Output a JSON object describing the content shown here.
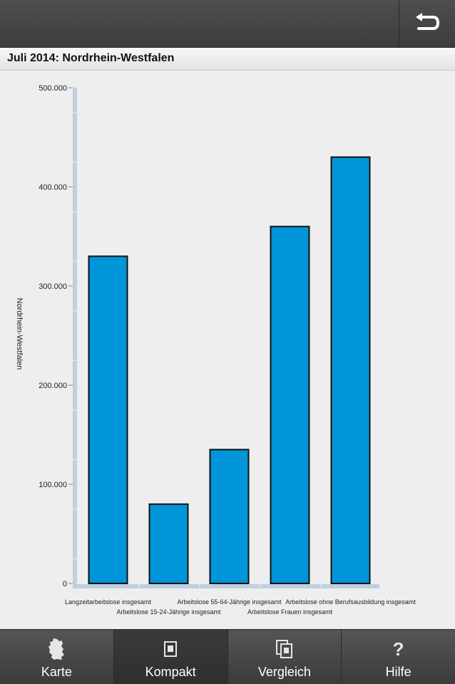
{
  "header": {
    "title": "Juli 2014: Nordrhein-Westfalen"
  },
  "chart_data": {
    "type": "bar",
    "title": "",
    "xlabel": "",
    "ylabel": "Nordrhein-Westfalen",
    "ylim": [
      0,
      500000
    ],
    "yticks": [
      0,
      100000,
      200000,
      300000,
      400000,
      500000
    ],
    "ytick_labels": [
      "0",
      "100.000",
      "200.000",
      "300.000",
      "400.000",
      "500.000"
    ],
    "categories": [
      "Langzeitarbeitslose insgesamt",
      "Arbeitslose 15-24-Jährige insgesamt",
      "Arbeitslose 55-64-Jährige insgesamt",
      "Arbeitslose Frauen insgesamt",
      "Arbeitslose ohne Berufsausbildung insgesamt"
    ],
    "values": [
      330000,
      80000,
      135000,
      360000,
      430000
    ],
    "bar_color": "#0095d9",
    "grid": false
  },
  "nav": {
    "items": [
      {
        "label": "Karte",
        "icon": "germany-map-icon",
        "active": false
      },
      {
        "label": "Kompakt",
        "icon": "document-icon",
        "active": true
      },
      {
        "label": "Vergleich",
        "icon": "documents-stack-icon",
        "active": false
      },
      {
        "label": "Hilfe",
        "icon": "question-icon",
        "active": false
      }
    ]
  }
}
